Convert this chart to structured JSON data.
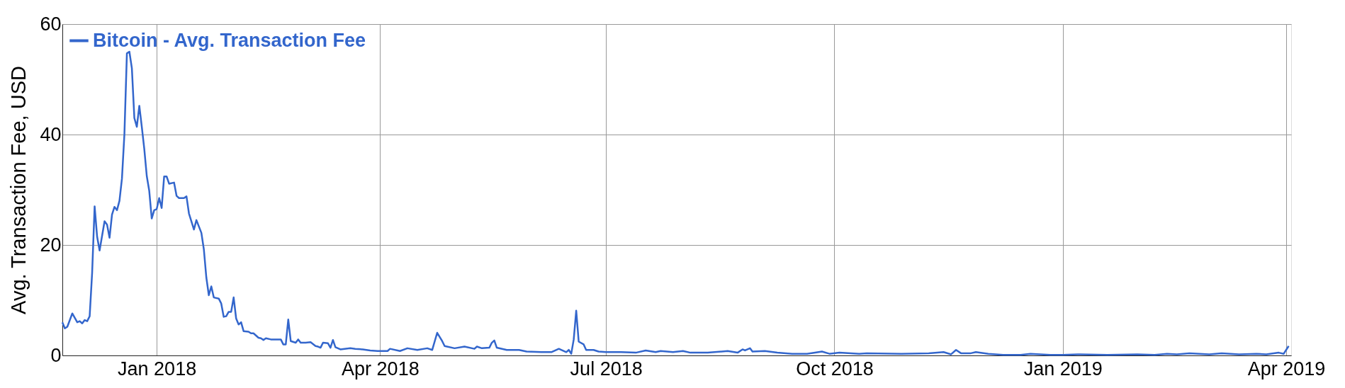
{
  "chart_data": {
    "type": "line",
    "ylabel": "Avg. Transaction Fee, USD",
    "x": [
      "2017-11-24",
      "2017-11-25",
      "2017-11-26",
      "2017-11-28",
      "2017-11-30",
      "2017-12-01",
      "2017-12-02",
      "2017-12-03",
      "2017-12-04",
      "2017-12-05",
      "2017-12-06",
      "2017-12-07",
      "2017-12-08",
      "2017-12-09",
      "2017-12-11",
      "2017-12-12",
      "2017-12-13",
      "2017-12-14",
      "2017-12-15",
      "2017-12-16",
      "2017-12-17",
      "2017-12-18",
      "2017-12-19",
      "2017-12-20",
      "2017-12-21",
      "2017-12-22",
      "2017-12-23",
      "2017-12-24",
      "2017-12-25",
      "2017-12-26",
      "2017-12-27",
      "2017-12-28",
      "2017-12-29",
      "2017-12-30",
      "2017-12-31",
      "2018-01-01",
      "2018-01-02",
      "2018-01-03",
      "2018-01-04",
      "2018-01-05",
      "2018-01-06",
      "2018-01-08",
      "2018-01-09",
      "2018-01-10",
      "2018-01-12",
      "2018-01-13",
      "2018-01-14",
      "2018-01-16",
      "2018-01-17",
      "2018-01-19",
      "2018-01-20",
      "2018-01-21",
      "2018-01-22",
      "2018-01-23",
      "2018-01-24",
      "2018-01-26",
      "2018-01-27",
      "2018-01-28",
      "2018-01-29",
      "2018-01-30",
      "2018-01-31",
      "2018-02-01",
      "2018-02-02",
      "2018-02-03",
      "2018-02-04",
      "2018-02-05",
      "2018-02-07",
      "2018-02-08",
      "2018-02-09",
      "2018-02-11",
      "2018-02-12",
      "2018-02-13",
      "2018-02-14",
      "2018-02-16",
      "2018-02-18",
      "2018-02-20",
      "2018-02-21",
      "2018-02-22",
      "2018-02-23",
      "2018-02-24",
      "2018-02-26",
      "2018-02-27",
      "2018-02-28",
      "2018-03-02",
      "2018-03-04",
      "2018-03-06",
      "2018-03-07",
      "2018-03-08",
      "2018-03-09",
      "2018-03-11",
      "2018-03-12",
      "2018-03-13",
      "2018-03-14",
      "2018-03-16",
      "2018-03-20",
      "2018-03-22",
      "2018-03-25",
      "2018-03-28",
      "2018-03-31",
      "2018-04-04",
      "2018-04-05",
      "2018-04-09",
      "2018-04-12",
      "2018-04-16",
      "2018-04-20",
      "2018-04-22",
      "2018-04-24",
      "2018-04-26",
      "2018-04-27",
      "2018-05-01",
      "2018-05-05",
      "2018-05-09",
      "2018-05-10",
      "2018-05-12",
      "2018-05-15",
      "2018-05-16",
      "2018-05-17",
      "2018-05-18",
      "2018-05-22",
      "2018-05-27",
      "2018-05-30",
      "2018-06-05",
      "2018-06-09",
      "2018-06-12",
      "2018-06-15",
      "2018-06-16",
      "2018-06-17",
      "2018-06-18",
      "2018-06-19",
      "2018-06-20",
      "2018-06-22",
      "2018-06-23",
      "2018-06-26",
      "2018-06-28",
      "2018-07-01",
      "2018-07-07",
      "2018-07-13",
      "2018-07-17",
      "2018-07-21",
      "2018-07-23",
      "2018-07-28",
      "2018-08-01",
      "2018-08-04",
      "2018-08-11",
      "2018-08-19",
      "2018-08-23",
      "2018-08-25",
      "2018-08-26",
      "2018-08-28",
      "2018-08-29",
      "2018-09-03",
      "2018-09-08",
      "2018-09-14",
      "2018-09-20",
      "2018-09-26",
      "2018-09-29",
      "2018-10-03",
      "2018-10-11",
      "2018-10-14",
      "2018-10-28",
      "2018-11-08",
      "2018-11-14",
      "2018-11-17",
      "2018-11-19",
      "2018-11-21",
      "2018-11-25",
      "2018-11-27",
      "2018-12-02",
      "2018-12-08",
      "2018-12-15",
      "2018-12-19",
      "2018-12-27",
      "2019-01-01",
      "2019-01-07",
      "2019-01-19",
      "2019-01-31",
      "2019-02-07",
      "2019-02-12",
      "2019-02-16",
      "2019-02-21",
      "2019-03-01",
      "2019-03-06",
      "2019-03-13",
      "2019-03-20",
      "2019-03-24",
      "2019-03-29",
      "2019-03-31",
      "2019-04-02"
    ],
    "series": [
      {
        "name": "Bitcoin - Avg. Transaction Fee",
        "color": "#3366cc",
        "values": [
          6.0,
          4.9,
          5.2,
          7.6,
          6.0,
          6.2,
          5.8,
          6.4,
          6.2,
          7.1,
          15.0,
          27.0,
          21.5,
          19.0,
          24.3,
          23.7,
          21.3,
          25.5,
          26.9,
          26.3,
          28.0,
          32.0,
          40.1,
          54.7,
          55.0,
          52.0,
          43.0,
          41.4,
          45.2,
          41.4,
          37.4,
          32.5,
          29.8,
          24.8,
          26.3,
          26.5,
          28.5,
          26.7,
          32.4,
          32.4,
          31.1,
          31.3,
          28.9,
          28.5,
          28.5,
          28.8,
          25.7,
          22.8,
          24.5,
          22.2,
          19.2,
          14.1,
          10.9,
          12.5,
          10.5,
          10.3,
          9.4,
          7.0,
          7.1,
          7.9,
          7.9,
          10.5,
          6.7,
          5.6,
          6.0,
          4.4,
          4.3,
          4.0,
          4.0,
          3.2,
          3.1,
          2.8,
          3.1,
          2.9,
          2.9,
          2.9,
          2.0,
          2.0,
          6.5,
          2.6,
          2.3,
          2.9,
          2.3,
          2.3,
          2.4,
          1.7,
          1.6,
          1.4,
          2.3,
          2.2,
          1.4,
          2.8,
          1.5,
          1.1,
          1.3,
          1.2,
          1.1,
          0.9,
          0.8,
          0.8,
          1.2,
          0.8,
          1.3,
          1.0,
          1.3,
          1.0,
          4.1,
          2.6,
          1.7,
          1.3,
          1.6,
          1.2,
          1.6,
          1.3,
          1.4,
          2.3,
          2.7,
          1.4,
          1.0,
          1.0,
          0.7,
          0.6,
          0.6,
          1.2,
          0.6,
          1.0,
          0.3,
          2.9,
          8.1,
          2.5,
          2.0,
          1.0,
          1.0,
          0.7,
          0.6,
          0.6,
          0.5,
          0.9,
          0.6,
          0.8,
          0.6,
          0.8,
          0.5,
          0.5,
          0.8,
          0.5,
          1.1,
          0.9,
          1.3,
          0.7,
          0.8,
          0.5,
          0.3,
          0.3,
          0.7,
          0.3,
          0.5,
          0.3,
          0.4,
          0.3,
          0.4,
          0.6,
          0.2,
          1.0,
          0.4,
          0.4,
          0.6,
          0.3,
          0.1,
          0.1,
          0.3,
          0.1,
          0.1,
          0.2,
          0.1,
          0.2,
          0.1,
          0.3,
          0.2,
          0.4,
          0.2,
          0.4,
          0.2,
          0.3,
          0.2,
          0.5,
          0.3,
          1.7
        ]
      }
    ],
    "xlim": [
      "2017-11-24",
      "2019-04-03"
    ],
    "xticks": [
      {
        "value": "2018-01-01",
        "label": "Jan 2018"
      },
      {
        "value": "2018-04-01",
        "label": "Apr 2018"
      },
      {
        "value": "2018-07-01",
        "label": "Jul 2018"
      },
      {
        "value": "2018-10-01",
        "label": "Oct 2018"
      },
      {
        "value": "2019-01-01",
        "label": "Jan 2019"
      },
      {
        "value": "2019-04-01",
        "label": "Apr 2019"
      }
    ],
    "ylim": [
      0,
      60
    ],
    "yticks": [
      0,
      20,
      40,
      60
    ],
    "grid": true,
    "legend": "top left",
    "marker": "none",
    "line_style": "solid"
  }
}
